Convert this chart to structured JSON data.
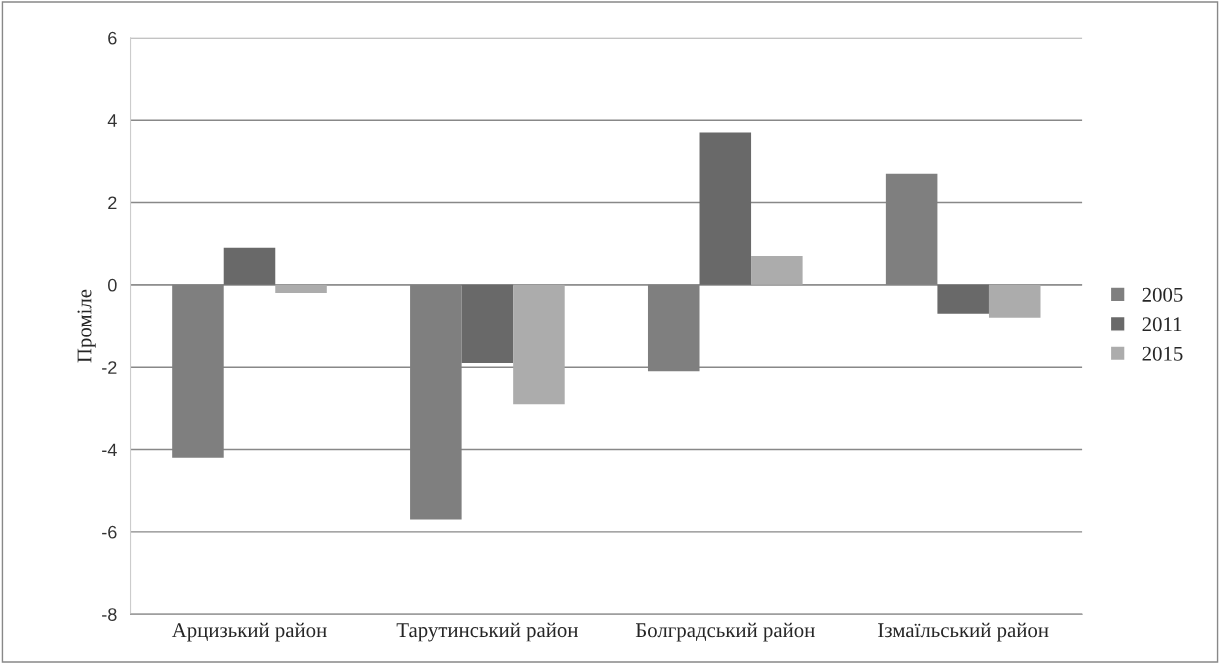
{
  "chart_data": {
    "type": "bar",
    "ylabel": "Проміле",
    "categories": [
      "Арцизький район",
      "Тарутинський район",
      "Болградський район",
      "Ізмаїльський район"
    ],
    "series": [
      {
        "name": "2005",
        "color": "#7f7f7f",
        "values": [
          -4.2,
          -5.7,
          -2.1,
          2.7
        ]
      },
      {
        "name": "2011",
        "color": "#696969",
        "values": [
          0.9,
          -1.9,
          3.7,
          -0.7
        ]
      },
      {
        "name": "2015",
        "color": "#acacac",
        "values": [
          -0.2,
          -2.9,
          0.7,
          -0.8
        ]
      }
    ],
    "ylim": [
      -8,
      6
    ],
    "yticks": [
      -8,
      -6,
      -4,
      -2,
      0,
      2,
      4,
      6
    ],
    "grid": "y",
    "legend": "right"
  }
}
